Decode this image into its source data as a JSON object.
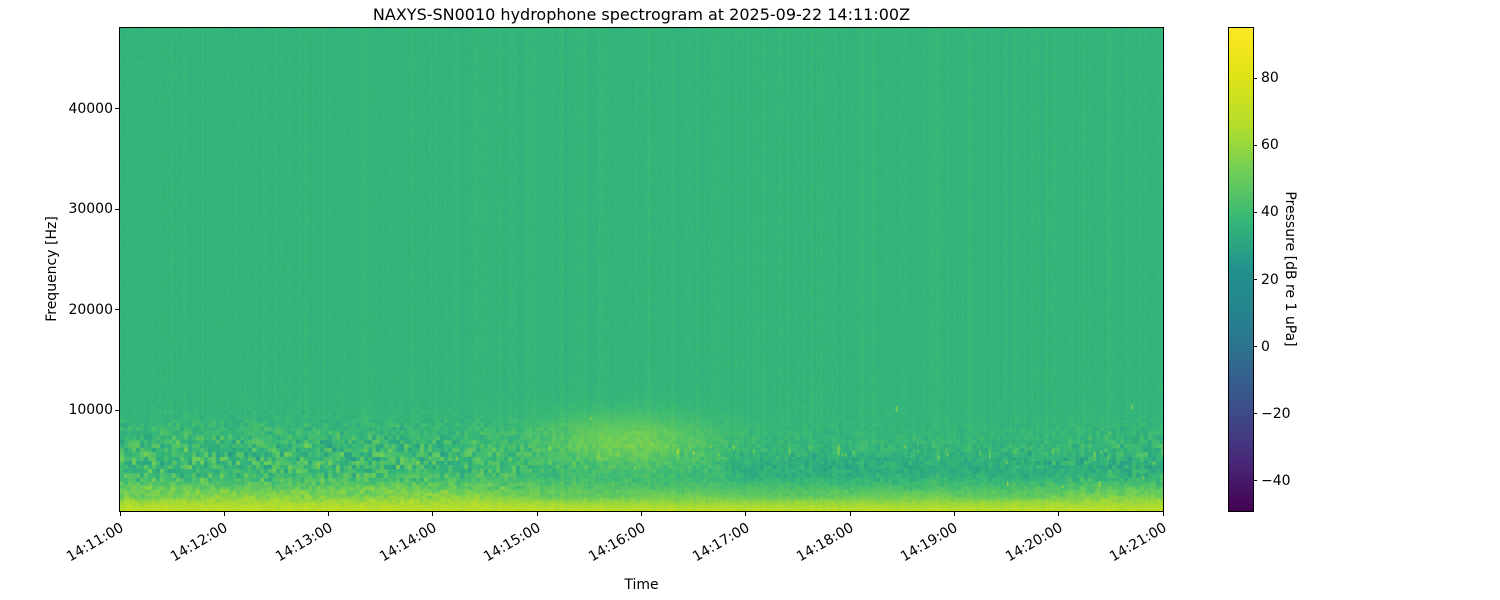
{
  "chart_data": {
    "type": "heatmap",
    "subtype": "spectrogram",
    "title": "NAXYS-SN0010 hydrophone spectrogram at 2025-09-22 14:11:00Z",
    "xlabel": "Time",
    "ylabel": "Frequency [Hz]",
    "x_tick_labels": [
      "14:11:00",
      "14:12:00",
      "14:13:00",
      "14:14:00",
      "14:15:00",
      "14:16:00",
      "14:17:00",
      "14:18:00",
      "14:19:00",
      "14:20:00",
      "14:21:00"
    ],
    "x_range_minutes": [
      0,
      10
    ],
    "x_tick_rotation_deg": 30,
    "y_ticks_hz": [
      10000,
      20000,
      30000,
      40000
    ],
    "y_range_hz": [
      0,
      48000
    ],
    "grid": false,
    "legend": "none",
    "colorbar": {
      "label": "Pressure [dB re 1 uPa]",
      "tick_values": [
        80,
        60,
        40,
        20,
        0,
        -20,
        -40
      ],
      "tick_labels": [
        "80",
        "60",
        "40",
        "20",
        "0",
        "−20",
        "−40"
      ],
      "vmin": -49,
      "vmax": 95,
      "colormap": "viridis",
      "colormap_stops": [
        [
          0.0,
          "#440154"
        ],
        [
          0.1,
          "#482878"
        ],
        [
          0.2,
          "#3e4a89"
        ],
        [
          0.3,
          "#31688e"
        ],
        [
          0.4,
          "#26828e"
        ],
        [
          0.5,
          "#21918c"
        ],
        [
          0.6,
          "#35b779"
        ],
        [
          0.7,
          "#6ece58"
        ],
        [
          0.8,
          "#b5de2b"
        ],
        [
          0.9,
          "#dfe318"
        ],
        [
          1.0,
          "#fde725"
        ]
      ]
    },
    "spectrogram_model": {
      "comment": "Observed content: uniform ~35-40 dB green background above ~12 kHz with faint vertical striations; bright 60-75 dB yellow-green band below ~1.5 kHz for the whole duration; textured 40-55 dB band 2-10 kHz strongest 14:11-14:14:30; smooth bright blob ~5-9 kHz around 14:15:20-14:16:40; weaker teal-dipped band 3-6 kHz plus short bright transients near 6 kHz after 14:17.",
      "background_db": 36.5,
      "low_band": {
        "db": 30,
        "f_scale": 1500,
        "exp": 1.8
      },
      "mid_band": {
        "f_center": 1900,
        "f_width": 1300,
        "db": 10
      },
      "texture_band": {
        "f_center": 5200,
        "f_width": 3200,
        "db_early": 11,
        "db_late": 4,
        "fade_minute": 3.8
      },
      "blob": {
        "t_center_min": 4.85,
        "t_width_min": 0.8,
        "f_center": 7000,
        "f_width": 2600,
        "db": 15
      },
      "right_dip": {
        "f_center": 4200,
        "f_width": 1800,
        "db": 4,
        "start_min": 5.8
      },
      "notch_1500hz_db": 4.5,
      "column_noise_db": 1.8,
      "pixel_noise_db": 1.5,
      "transient_count": 90
    }
  }
}
